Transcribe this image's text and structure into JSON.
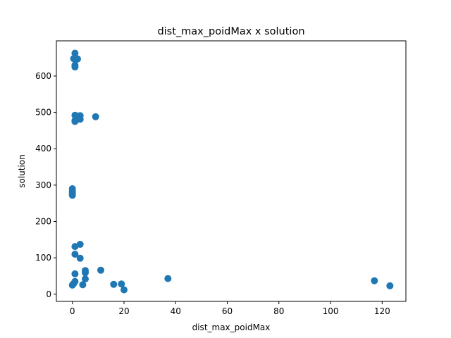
{
  "chart_data": {
    "type": "scatter",
    "title": "dist_max_poidMax x solution",
    "xlabel": "dist_max_poidMax",
    "ylabel": "solution",
    "xlim": [
      -6.2,
      129.2
    ],
    "ylim": [
      -19.8,
      696.8
    ],
    "xticks": [
      0,
      20,
      40,
      60,
      80,
      100,
      120
    ],
    "yticks": [
      0,
      100,
      200,
      300,
      400,
      500,
      600
    ],
    "grid": false,
    "legend": "none",
    "marker_color": "#1f77b4",
    "points": [
      {
        "x": 1,
        "y": 663
      },
      {
        "x": 0.5,
        "y": 648
      },
      {
        "x": 1,
        "y": 648
      },
      {
        "x": 2,
        "y": 647
      },
      {
        "x": 1,
        "y": 630
      },
      {
        "x": 1,
        "y": 625
      },
      {
        "x": 1,
        "y": 492
      },
      {
        "x": 2,
        "y": 490
      },
      {
        "x": 3,
        "y": 491
      },
      {
        "x": 9,
        "y": 488
      },
      {
        "x": 3,
        "y": 481
      },
      {
        "x": 1,
        "y": 478
      },
      {
        "x": 1,
        "y": 475
      },
      {
        "x": 0,
        "y": 290
      },
      {
        "x": 0,
        "y": 283
      },
      {
        "x": 0,
        "y": 278
      },
      {
        "x": 0,
        "y": 272
      },
      {
        "x": 3,
        "y": 137
      },
      {
        "x": 1,
        "y": 131
      },
      {
        "x": 1,
        "y": 110
      },
      {
        "x": 3,
        "y": 99
      },
      {
        "x": 11,
        "y": 66
      },
      {
        "x": 5,
        "y": 65
      },
      {
        "x": 5,
        "y": 59
      },
      {
        "x": 1,
        "y": 56
      },
      {
        "x": 37,
        "y": 43
      },
      {
        "x": 5,
        "y": 42
      },
      {
        "x": 117,
        "y": 37
      },
      {
        "x": 1,
        "y": 35
      },
      {
        "x": 0.5,
        "y": 29
      },
      {
        "x": 19,
        "y": 28
      },
      {
        "x": 16,
        "y": 27
      },
      {
        "x": 4,
        "y": 26
      },
      {
        "x": 0,
        "y": 25
      },
      {
        "x": 123,
        "y": 23
      },
      {
        "x": 20,
        "y": 12
      }
    ]
  }
}
